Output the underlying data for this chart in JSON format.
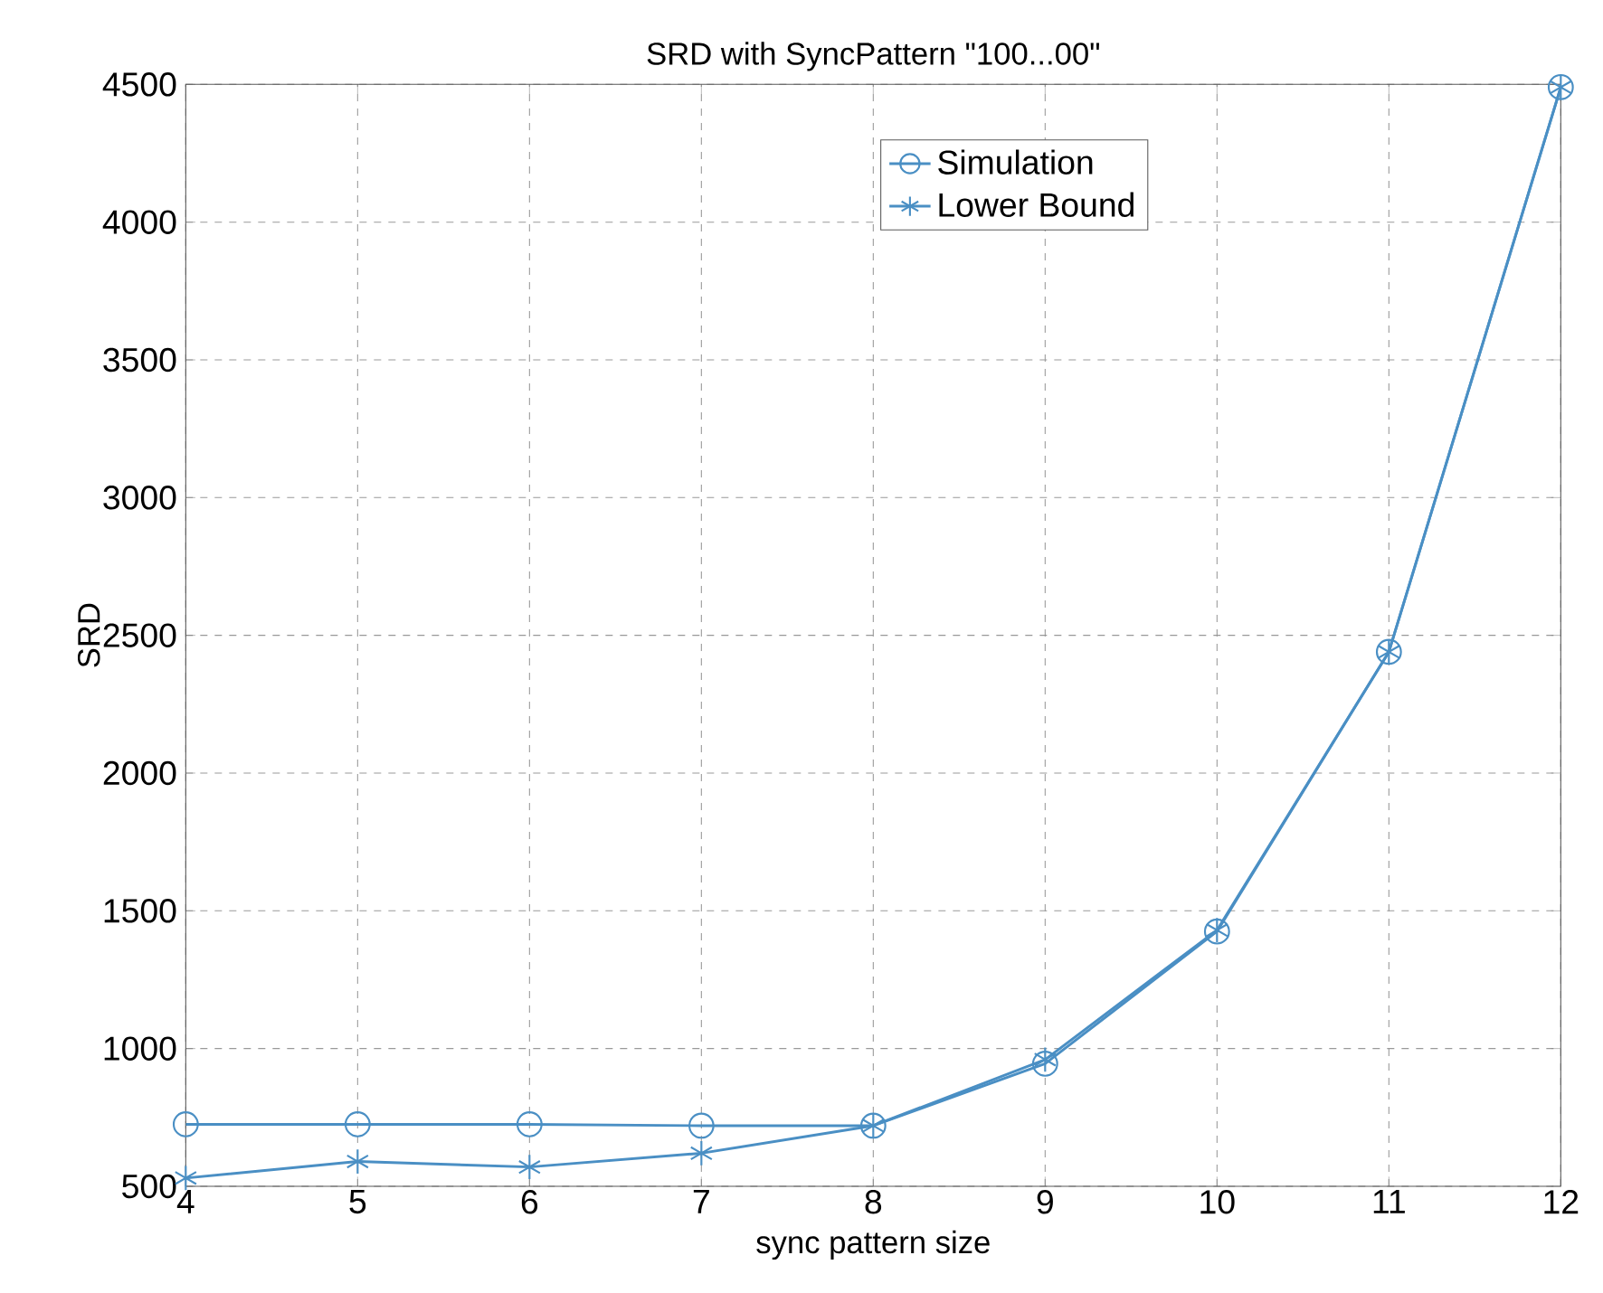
{
  "chart_data": {
    "type": "line",
    "title": "SRD with SyncPattern \"100...00\"",
    "xlabel": "sync pattern size",
    "ylabel": "SRD",
    "x": [
      4,
      5,
      6,
      7,
      8,
      9,
      10,
      11,
      12
    ],
    "series": [
      {
        "name": "Simulation",
        "color": "#4a8fc4",
        "marker": "circle",
        "values": [
          725,
          725,
          725,
          720,
          720,
          945,
          1425,
          2440,
          4490
        ]
      },
      {
        "name": "Lower Bound",
        "color": "#4a8fc4",
        "marker": "cross",
        "values": [
          530,
          590,
          570,
          620,
          720,
          960,
          1430,
          2440,
          4490
        ]
      }
    ],
    "xlim": [
      4,
      12
    ],
    "xticks": [
      4,
      5,
      6,
      7,
      8,
      9,
      10,
      11,
      12
    ],
    "ylim": [
      500,
      4500
    ],
    "yticks": [
      500,
      1000,
      1500,
      2000,
      2500,
      3000,
      3500,
      4000,
      4500
    ],
    "grid": true,
    "legend": "top right",
    "line_style": "solid"
  }
}
